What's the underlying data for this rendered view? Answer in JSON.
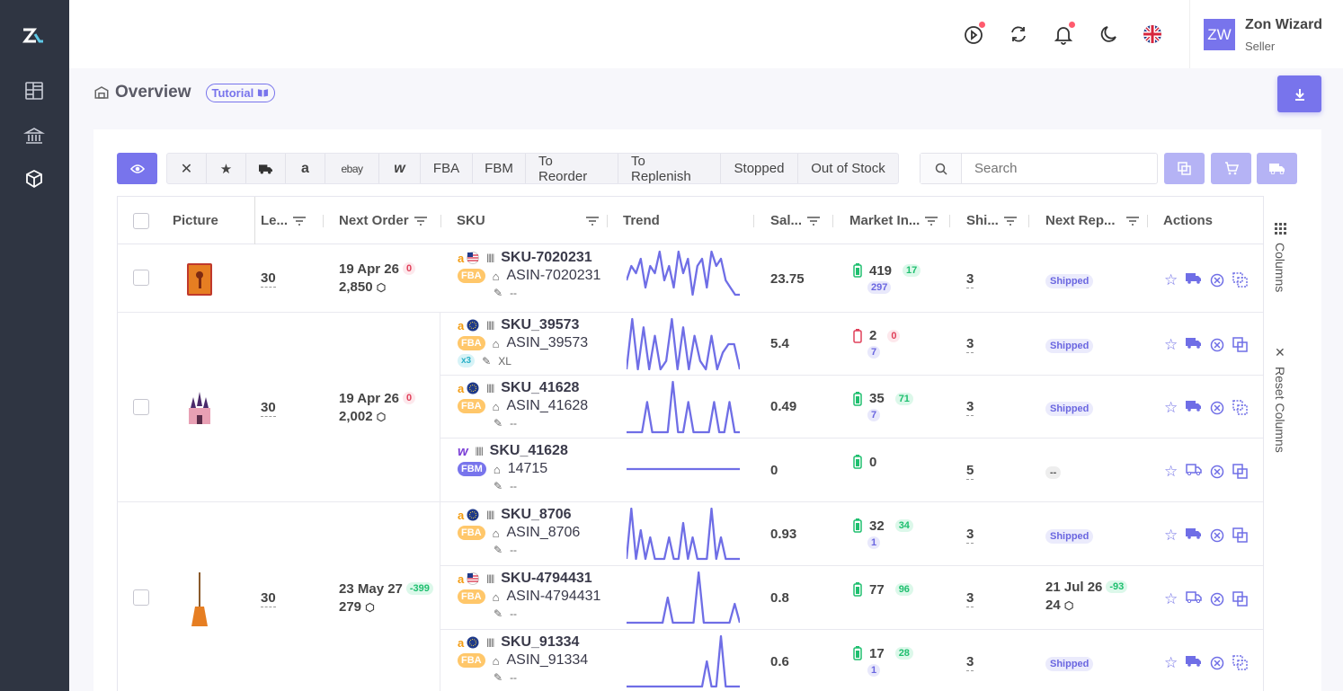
{
  "sidebar": {
    "items": [
      "dashboard-icon",
      "bank-icon",
      "box-icon"
    ]
  },
  "user": {
    "initials": "ZW",
    "name": "Zon Wizard",
    "role": "Seller"
  },
  "page": {
    "title": "Overview",
    "tutorial": "Tutorial"
  },
  "filters": {
    "buttons": [
      "FBA",
      "FBM",
      "To Reorder",
      "To Replenish",
      "Stopped",
      "Out of Stock"
    ],
    "ebay": "ebay"
  },
  "search": {
    "placeholder": "Search"
  },
  "columns": [
    "Picture",
    "Le...",
    "Next Order",
    "SKU",
    "Trend",
    "Sal...",
    "Market In...",
    "Shi...",
    "Next Rep...",
    "Actions"
  ],
  "sidepanel": {
    "columns": "Columns",
    "reset": "Reset Columns"
  },
  "groups": [
    {
      "lead": "30",
      "next_order_date": "19 Apr 26",
      "next_order_badge": "0",
      "next_order_qty": "2,850"
    },
    {
      "lead": "30",
      "next_order_date": "19 Apr 26",
      "next_order_badge": "0",
      "next_order_qty": "2,002"
    },
    {
      "lead": "30",
      "next_order_date": "23 May 27",
      "next_order_badge": "-399",
      "next_order_qty": "279"
    }
  ],
  "rows": [
    {
      "sku": "SKU-7020231",
      "asin": "ASIN-7020231",
      "note": "--",
      "badge": "FBA",
      "sales": "23.75",
      "market": "419",
      "market_badge": "17",
      "market_sub": "297",
      "ship": "3",
      "next_rep": "Shipped",
      "trend": [
        3,
        5,
        4,
        6,
        2,
        5,
        4,
        7,
        3,
        5,
        2,
        7,
        4,
        6,
        1,
        5,
        6,
        2,
        7,
        5,
        6,
        3,
        2,
        1,
        1
      ]
    },
    {
      "sku": "SKU_39573",
      "asin": "ASIN_39573",
      "note": "XL",
      "badge": "FBA",
      "extra": "x3",
      "sales": "5.4",
      "market": "2",
      "market_badge": "0",
      "market_sub": "7",
      "ship": "3",
      "next_rep": "Shipped",
      "trend": [
        0,
        6,
        0,
        5,
        0,
        4,
        0,
        1,
        6,
        0,
        5,
        0,
        4,
        1,
        0,
        4,
        0,
        2,
        3,
        3,
        0
      ]
    },
    {
      "sku": "SKU_41628",
      "asin": "ASIN_41628",
      "note": "--",
      "badge": "FBA",
      "sales": "0.49",
      "market": "35",
      "market_badge": "71",
      "market_sub": "7",
      "ship": "3",
      "next_rep": "Shipped",
      "trend": [
        0,
        0,
        0,
        0,
        3,
        0,
        0,
        0,
        0,
        5,
        0,
        0,
        3,
        0,
        0,
        0,
        0,
        3,
        0,
        0,
        3,
        0,
        0
      ]
    },
    {
      "sku": "SKU_41628",
      "asin": "14715",
      "note": "--",
      "badge": "FBM",
      "sales": "0",
      "market": "0",
      "ship": "5",
      "next_rep": "--",
      "trend": [
        0,
        0,
        0,
        0,
        0,
        0,
        0,
        0,
        0,
        0
      ]
    },
    {
      "sku": "SKU_8706",
      "asin": "ASIN_8706",
      "note": "--",
      "badge": "FBA",
      "sales": "0.93",
      "market": "32",
      "market_badge": "34",
      "market_sub": "1",
      "ship": "3",
      "next_rep": "Shipped",
      "trend": [
        0,
        7,
        0,
        4,
        0,
        3,
        0,
        0,
        0,
        3,
        0,
        0,
        5,
        0,
        3,
        0,
        0,
        0,
        7,
        0,
        3,
        0,
        0,
        0,
        0
      ]
    },
    {
      "sku": "SKU-4794431",
      "asin": "ASIN-4794431",
      "note": "--",
      "badge": "FBA",
      "sales": "0.8",
      "market": "77",
      "market_badge": "96",
      "market_sub": "",
      "ship": "3",
      "next_rep_date": "21 Jul 26",
      "next_rep_badge": "-93",
      "next_rep_qty": "24",
      "trend": [
        0,
        0,
        0,
        0,
        0,
        0,
        0,
        0,
        4,
        0,
        0,
        0,
        0,
        0,
        8,
        0,
        0,
        0,
        0,
        0,
        0,
        3,
        0
      ]
    },
    {
      "sku": "SKU_91334",
      "asin": "ASIN_91334",
      "note": "--",
      "badge": "FBA",
      "sales": "0.6",
      "market": "17",
      "market_badge": "28",
      "market_sub": "1",
      "ship": "3",
      "next_rep": "Shipped",
      "trend": [
        0,
        0,
        0,
        0,
        0,
        0,
        0,
        0,
        0,
        0,
        0,
        0,
        0,
        0,
        0,
        0,
        0,
        4,
        0,
        0,
        8,
        0,
        0,
        0,
        0
      ]
    }
  ],
  "colors": {
    "accent": "#7874ec",
    "trend": "#6f6ee6"
  }
}
